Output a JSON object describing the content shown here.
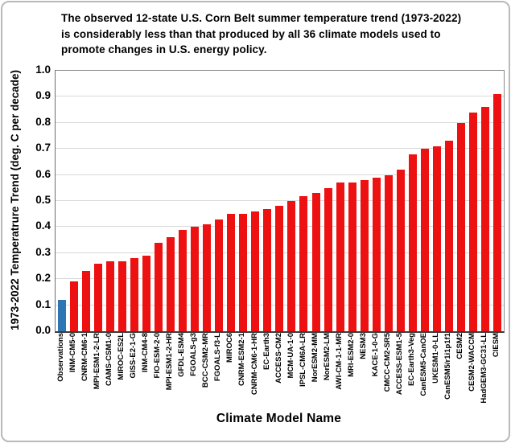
{
  "header": {
    "line1": "The observed 12-state U.S. Corn Belt summer temperature trend (1973-2022)",
    "line2": "is considerably less than that produced by all 36 climate models used to",
    "line3": "promote changes in U.S. energy policy."
  },
  "chart_data": {
    "type": "bar",
    "title": "The observed 12-state U.S. Corn Belt summer temperature trend (1973-2022) is considerably less than that produced by all 36 climate models used to promote changes in U.S. energy policy.",
    "xlabel": "Climate Model Name",
    "ylabel": "1973-2022 Temperatrure Trend (deg. C per decade)",
    "ylim": [
      0.0,
      1.0
    ],
    "ytick_step": 0.1,
    "ytick_labels": [
      "0.0",
      "0.1",
      "0.2",
      "0.3",
      "0.4",
      "0.5",
      "0.6",
      "0.7",
      "0.8",
      "0.9",
      "1.0"
    ],
    "grid": "horizontal",
    "legend": "none",
    "highlight_index": 0,
    "colors": {
      "observation_bar": "#2e75b6",
      "model_bar": "#ed1111",
      "gridline": "#d9d9d9",
      "axis": "#3a3a3a"
    },
    "categories": [
      "Observations",
      "INM-CM5-0",
      "CNRM-CM6-1",
      "MPI-ESM1-2-LR",
      "CAMS-CSM1-0",
      "MIROC-ES2L",
      "GISS-E2-1-G",
      "INM-CM4-8",
      "FIO-ESM-2-0",
      "MPI-ESM1-2-HR",
      "GFDL-ESM4",
      "FGOALS-g3",
      "BCC-CSM2-MR",
      "FGOALS-f3-L",
      "MIROC6",
      "CNRM-ESM2-1",
      "CNRM-CM6-1-HR",
      "EC-Earth3",
      "ACCESS-CM2",
      "MCM-UA-1-0",
      "IPSL-CM6A-LR",
      "NorESM2-MM",
      "NorESM2-LM",
      "AWI-CM-1-1-MR",
      "MRI-ESM2-0",
      "NESM3",
      "KACE-1-0-G",
      "CMCC-CM2-SR5",
      "ACCESS-ESM1-5",
      "EC-Earth3-Veg",
      "CanESM5-CanOE",
      "UKESM1-0-LL",
      "CanESM5/r1i1p1f1",
      "CESM2",
      "CESM2-WACCM",
      "HadGEM3-GC31-LL",
      "CIESM"
    ],
    "values": [
      0.12,
      0.19,
      0.23,
      0.26,
      0.27,
      0.27,
      0.28,
      0.29,
      0.34,
      0.36,
      0.39,
      0.4,
      0.41,
      0.43,
      0.45,
      0.45,
      0.46,
      0.47,
      0.48,
      0.5,
      0.52,
      0.53,
      0.55,
      0.57,
      0.57,
      0.58,
      0.59,
      0.6,
      0.62,
      0.68,
      0.7,
      0.71,
      0.73,
      0.8,
      0.84,
      0.86,
      0.91
    ]
  }
}
